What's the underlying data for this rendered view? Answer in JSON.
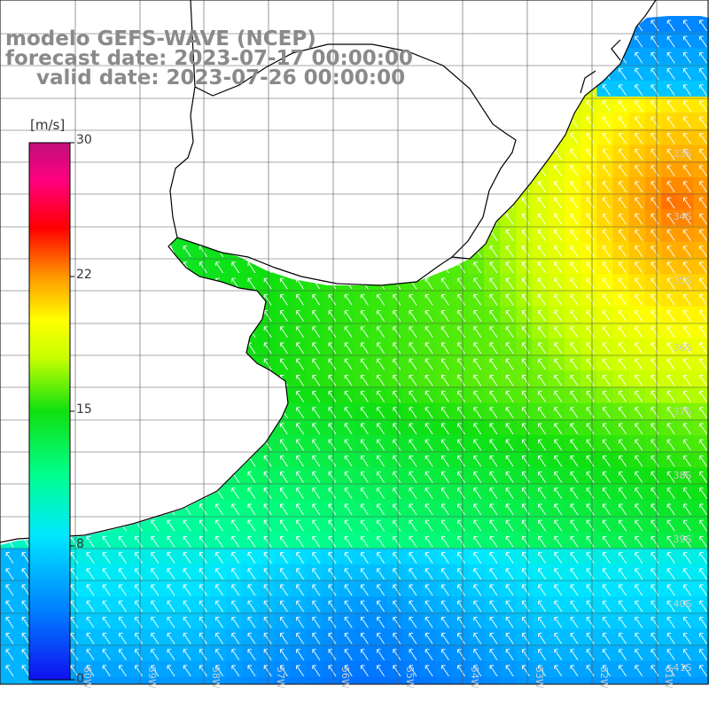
{
  "title": {
    "line1": "modelo GEFS-WAVE (NCEP)",
    "line2": "forecast date: 2023-07-17 00:00:00",
    "line3": "valid date: 2023-07-26 00:00:00"
  },
  "colorbar": {
    "unit": "[m/s]",
    "min": 0,
    "max": 30,
    "ticks": [
      "30",
      "22",
      "15",
      "8",
      "0"
    ],
    "tick_values": [
      30,
      22,
      15,
      8,
      0
    ],
    "stops": [
      "#1010f0",
      "#00bfff",
      "#00ffe0",
      "#10e010",
      "#aaff00",
      "#ffff00",
      "#ff9900",
      "#ff0000",
      "#ff0088",
      "#c0107a"
    ]
  },
  "lat_labels": [
    "33S",
    "34S",
    "35S",
    "36S",
    "37S",
    "38S",
    "39S",
    "40S",
    "41S"
  ],
  "lon_labels": [
    "60W",
    "59W",
    "58W",
    "57W",
    "56W",
    "55W",
    "54W",
    "53W",
    "52W",
    "51W"
  ],
  "field": {
    "description": "wind speed over ocean with direction arrows",
    "arrow_direction": "from southeast toward northwest"
  }
}
